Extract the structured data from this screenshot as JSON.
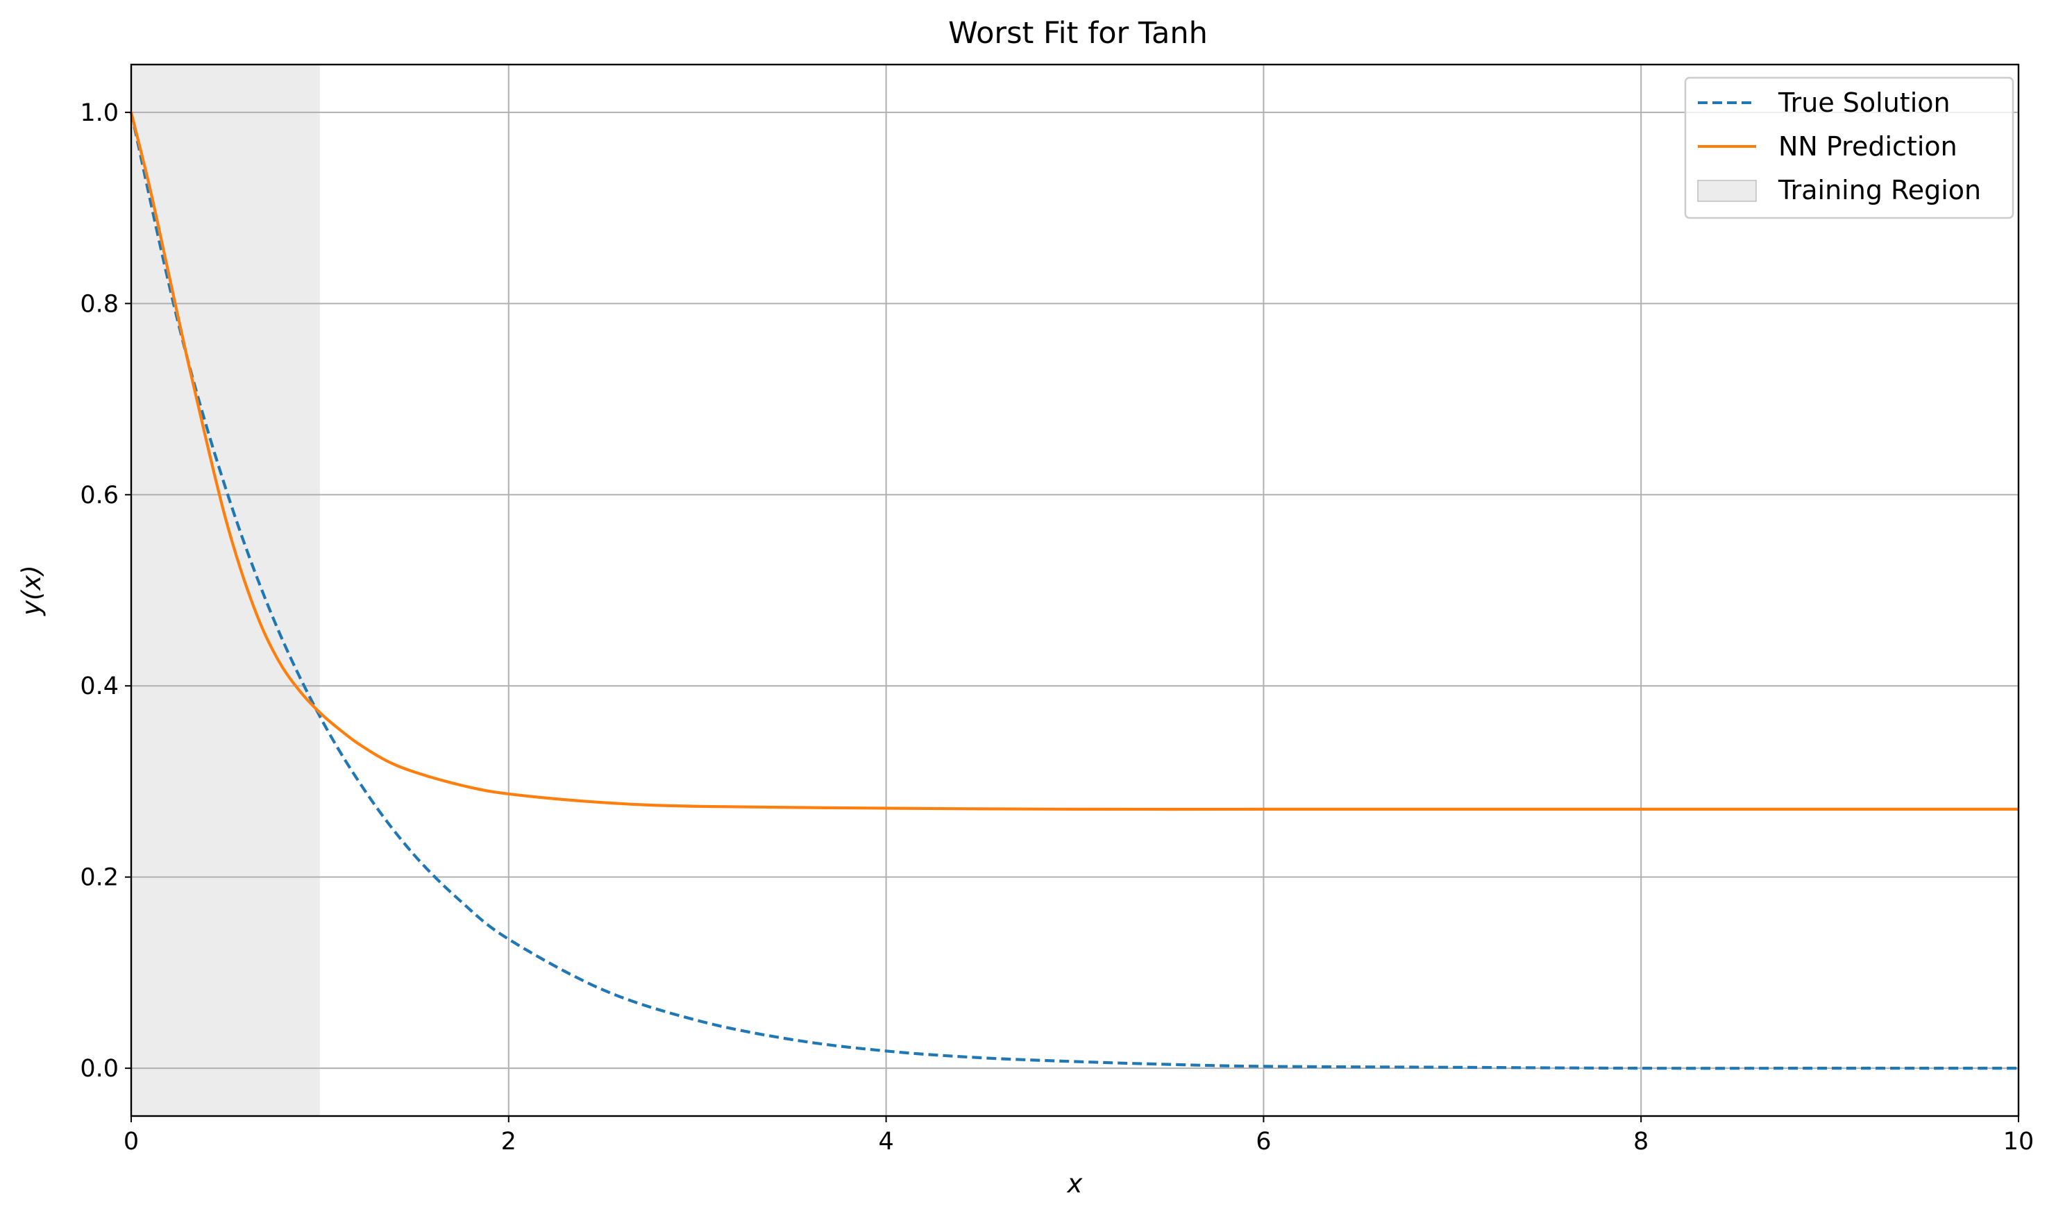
{
  "chart_data": {
    "type": "line",
    "title": "Worst Fit for Tanh",
    "xlabel": "x",
    "ylabel": "y(x)",
    "xlim": [
      0,
      10
    ],
    "ylim": [
      -0.05,
      1.05
    ],
    "x_ticks": [
      0,
      2,
      4,
      6,
      8,
      10
    ],
    "y_ticks": [
      0.0,
      0.2,
      0.4,
      0.6,
      0.8,
      1.0
    ],
    "x_tick_labels": [
      "0",
      "2",
      "4",
      "6",
      "8",
      "10"
    ],
    "y_tick_labels": [
      "0.0",
      "0.2",
      "0.4",
      "0.6",
      "0.8",
      "1.0"
    ],
    "grid": true,
    "legend_position": "top-right",
    "shaded_regions": [
      {
        "name": "Training Region",
        "x_start": 0,
        "x_end": 1,
        "color": "#d9d9d9"
      }
    ],
    "series": [
      {
        "name": "True Solution",
        "style": "dashed",
        "color": "#1f77b4",
        "x": [
          0,
          0.25,
          0.5,
          0.75,
          1,
          1.25,
          1.5,
          1.75,
          2,
          2.5,
          3,
          3.5,
          4,
          4.5,
          5,
          5.5,
          6,
          7,
          8,
          9,
          10
        ],
        "y": [
          1.0,
          0.779,
          0.607,
          0.472,
          0.368,
          0.287,
          0.223,
          0.174,
          0.135,
          0.082,
          0.05,
          0.03,
          0.018,
          0.011,
          0.007,
          0.004,
          0.002,
          0.001,
          0.0,
          0.0,
          0.0
        ]
      },
      {
        "name": "NN Prediction",
        "style": "solid",
        "color": "#ff7f0e",
        "x": [
          0,
          0.1,
          0.2,
          0.3,
          0.4,
          0.5,
          0.6,
          0.7,
          0.8,
          0.9,
          1.0,
          1.1,
          1.2,
          1.35,
          1.5,
          1.75,
          2.0,
          2.5,
          3.0,
          4.0,
          5.0,
          6.0,
          7.0,
          8.0,
          9.0,
          10.0
        ],
        "y": [
          1.0,
          0.92,
          0.83,
          0.74,
          0.655,
          0.575,
          0.51,
          0.458,
          0.42,
          0.393,
          0.372,
          0.355,
          0.34,
          0.322,
          0.31,
          0.296,
          0.287,
          0.278,
          0.274,
          0.272,
          0.271,
          0.271,
          0.271,
          0.271,
          0.271,
          0.271
        ]
      }
    ]
  }
}
